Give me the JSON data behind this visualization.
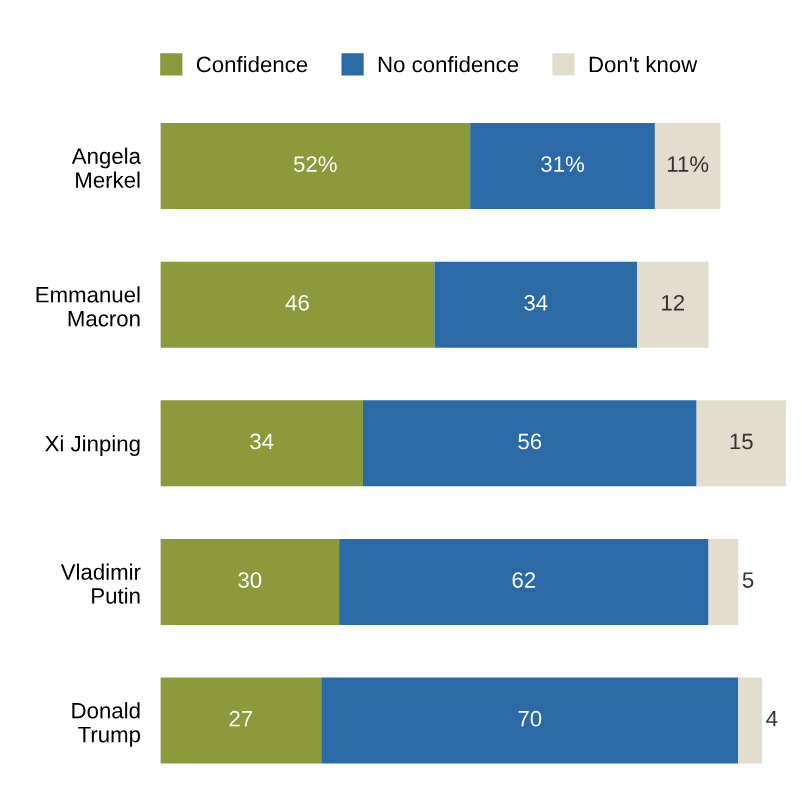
{
  "chart_data": {
    "type": "bar",
    "orientation": "horizontal",
    "stacked": true,
    "categories": [
      "Angela\nMerkel",
      "Emmanuel\nMacron",
      "Xi Jinping",
      "Vladimir\nPutin",
      "Donald\nTrump"
    ],
    "series": [
      {
        "name": "Confidence",
        "color": "#8c9a3c",
        "values": [
          52,
          46,
          34,
          30,
          27
        ],
        "value_labels": [
          "52%",
          "46",
          "34",
          "30",
          "27"
        ]
      },
      {
        "name": "No confidence",
        "color": "#2b6aa6",
        "values": [
          31,
          34,
          56,
          62,
          70
        ],
        "value_labels": [
          "31%",
          "34",
          "56",
          "62",
          "70"
        ]
      },
      {
        "name": "Don't know",
        "color": "#e2ddcc",
        "values": [
          11,
          12,
          15,
          5,
          4
        ],
        "value_labels": [
          "11%",
          "12",
          "15",
          "5",
          "4"
        ]
      }
    ],
    "xlim": [
      0,
      105
    ],
    "tick_labels": "y",
    "legend": "top",
    "grid": false
  }
}
